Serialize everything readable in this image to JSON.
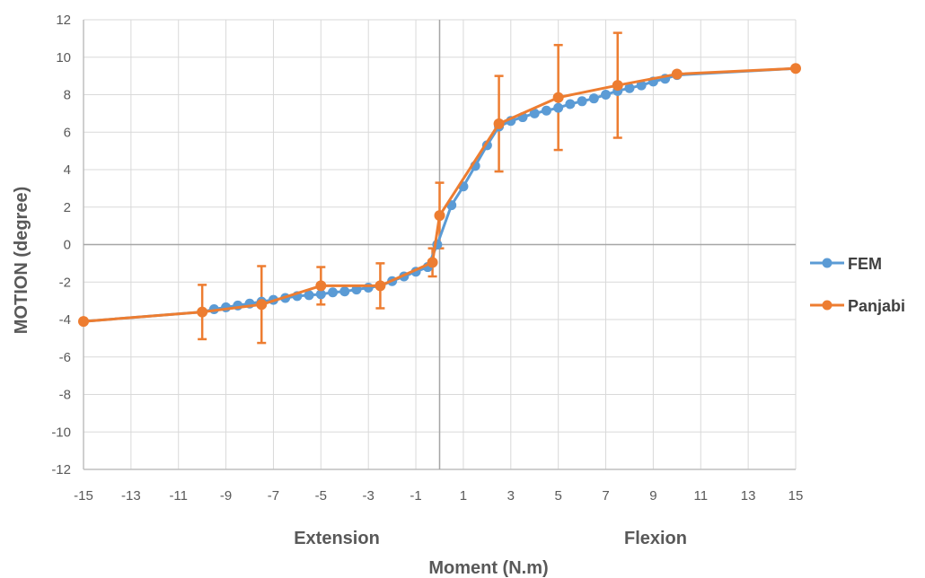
{
  "chart_data": {
    "type": "line",
    "xlabel": "Moment (N.m)",
    "ylabel": "MOTION (degree)",
    "region_labels": {
      "left": "Extension",
      "right": "Flexion"
    },
    "xlim": [
      -15,
      15
    ],
    "ylim": [
      -12,
      12
    ],
    "x_ticks": [
      -15,
      -13,
      -11,
      -9,
      -7,
      -5,
      -3,
      -1,
      1,
      3,
      5,
      7,
      9,
      11,
      13,
      15
    ],
    "y_ticks": [
      -12,
      -10,
      -8,
      -6,
      -4,
      -2,
      0,
      2,
      4,
      6,
      8,
      10,
      12
    ],
    "grid": true,
    "legend_position": "right",
    "series": [
      {
        "name": "FEM",
        "color": "#5B9BD5",
        "points": [
          [
            -15,
            -4.1
          ],
          [
            -10,
            -3.6
          ],
          [
            -9.5,
            -3.45
          ],
          [
            -9,
            -3.35
          ],
          [
            -8.5,
            -3.25
          ],
          [
            -8,
            -3.15
          ],
          [
            -7.5,
            -3.05
          ],
          [
            -7,
            -2.95
          ],
          [
            -6.5,
            -2.85
          ],
          [
            -6,
            -2.75
          ],
          [
            -5.5,
            -2.7
          ],
          [
            -5,
            -2.65
          ],
          [
            -4.5,
            -2.55
          ],
          [
            -4,
            -2.5
          ],
          [
            -3.5,
            -2.4
          ],
          [
            -3,
            -2.3
          ],
          [
            -2.5,
            -2.2
          ],
          [
            -2,
            -1.95
          ],
          [
            -1.5,
            -1.7
          ],
          [
            -1,
            -1.45
          ],
          [
            -0.5,
            -1.2
          ],
          [
            -0.1,
            0
          ],
          [
            0.5,
            2.1
          ],
          [
            1,
            3.1
          ],
          [
            1.5,
            4.2
          ],
          [
            2,
            5.3
          ],
          [
            2.5,
            6.3
          ],
          [
            3,
            6.6
          ],
          [
            3.5,
            6.8
          ],
          [
            4,
            7.0
          ],
          [
            4.5,
            7.15
          ],
          [
            5,
            7.3
          ],
          [
            5.5,
            7.5
          ],
          [
            6,
            7.65
          ],
          [
            6.5,
            7.8
          ],
          [
            7,
            8.0
          ],
          [
            7.5,
            8.2
          ],
          [
            8,
            8.35
          ],
          [
            8.5,
            8.5
          ],
          [
            9,
            8.7
          ],
          [
            9.5,
            8.85
          ],
          [
            10,
            9.05
          ],
          [
            15,
            9.4
          ]
        ]
      },
      {
        "name": "Panjabi",
        "color": "#ED7D31",
        "points": [
          {
            "x": -15,
            "y": -4.1
          },
          {
            "x": -10,
            "y": -3.6,
            "err": 1.45
          },
          {
            "x": -7.5,
            "y": -3.2,
            "err": 2.05
          },
          {
            "x": -5,
            "y": -2.2,
            "err": 1.0
          },
          {
            "x": -2.5,
            "y": -2.2,
            "err": 1.2
          },
          {
            "x": -0.3,
            "y": -0.95,
            "err": 0.75
          },
          {
            "x": 0,
            "y": 1.55,
            "err": 1.75
          },
          {
            "x": 2.5,
            "y": 6.45,
            "err": 2.55
          },
          {
            "x": 5,
            "y": 7.85,
            "err": 2.8
          },
          {
            "x": 7.5,
            "y": 8.5,
            "err": 2.8
          },
          {
            "x": 10,
            "y": 9.1
          },
          {
            "x": 15,
            "y": 9.4
          }
        ]
      }
    ]
  }
}
